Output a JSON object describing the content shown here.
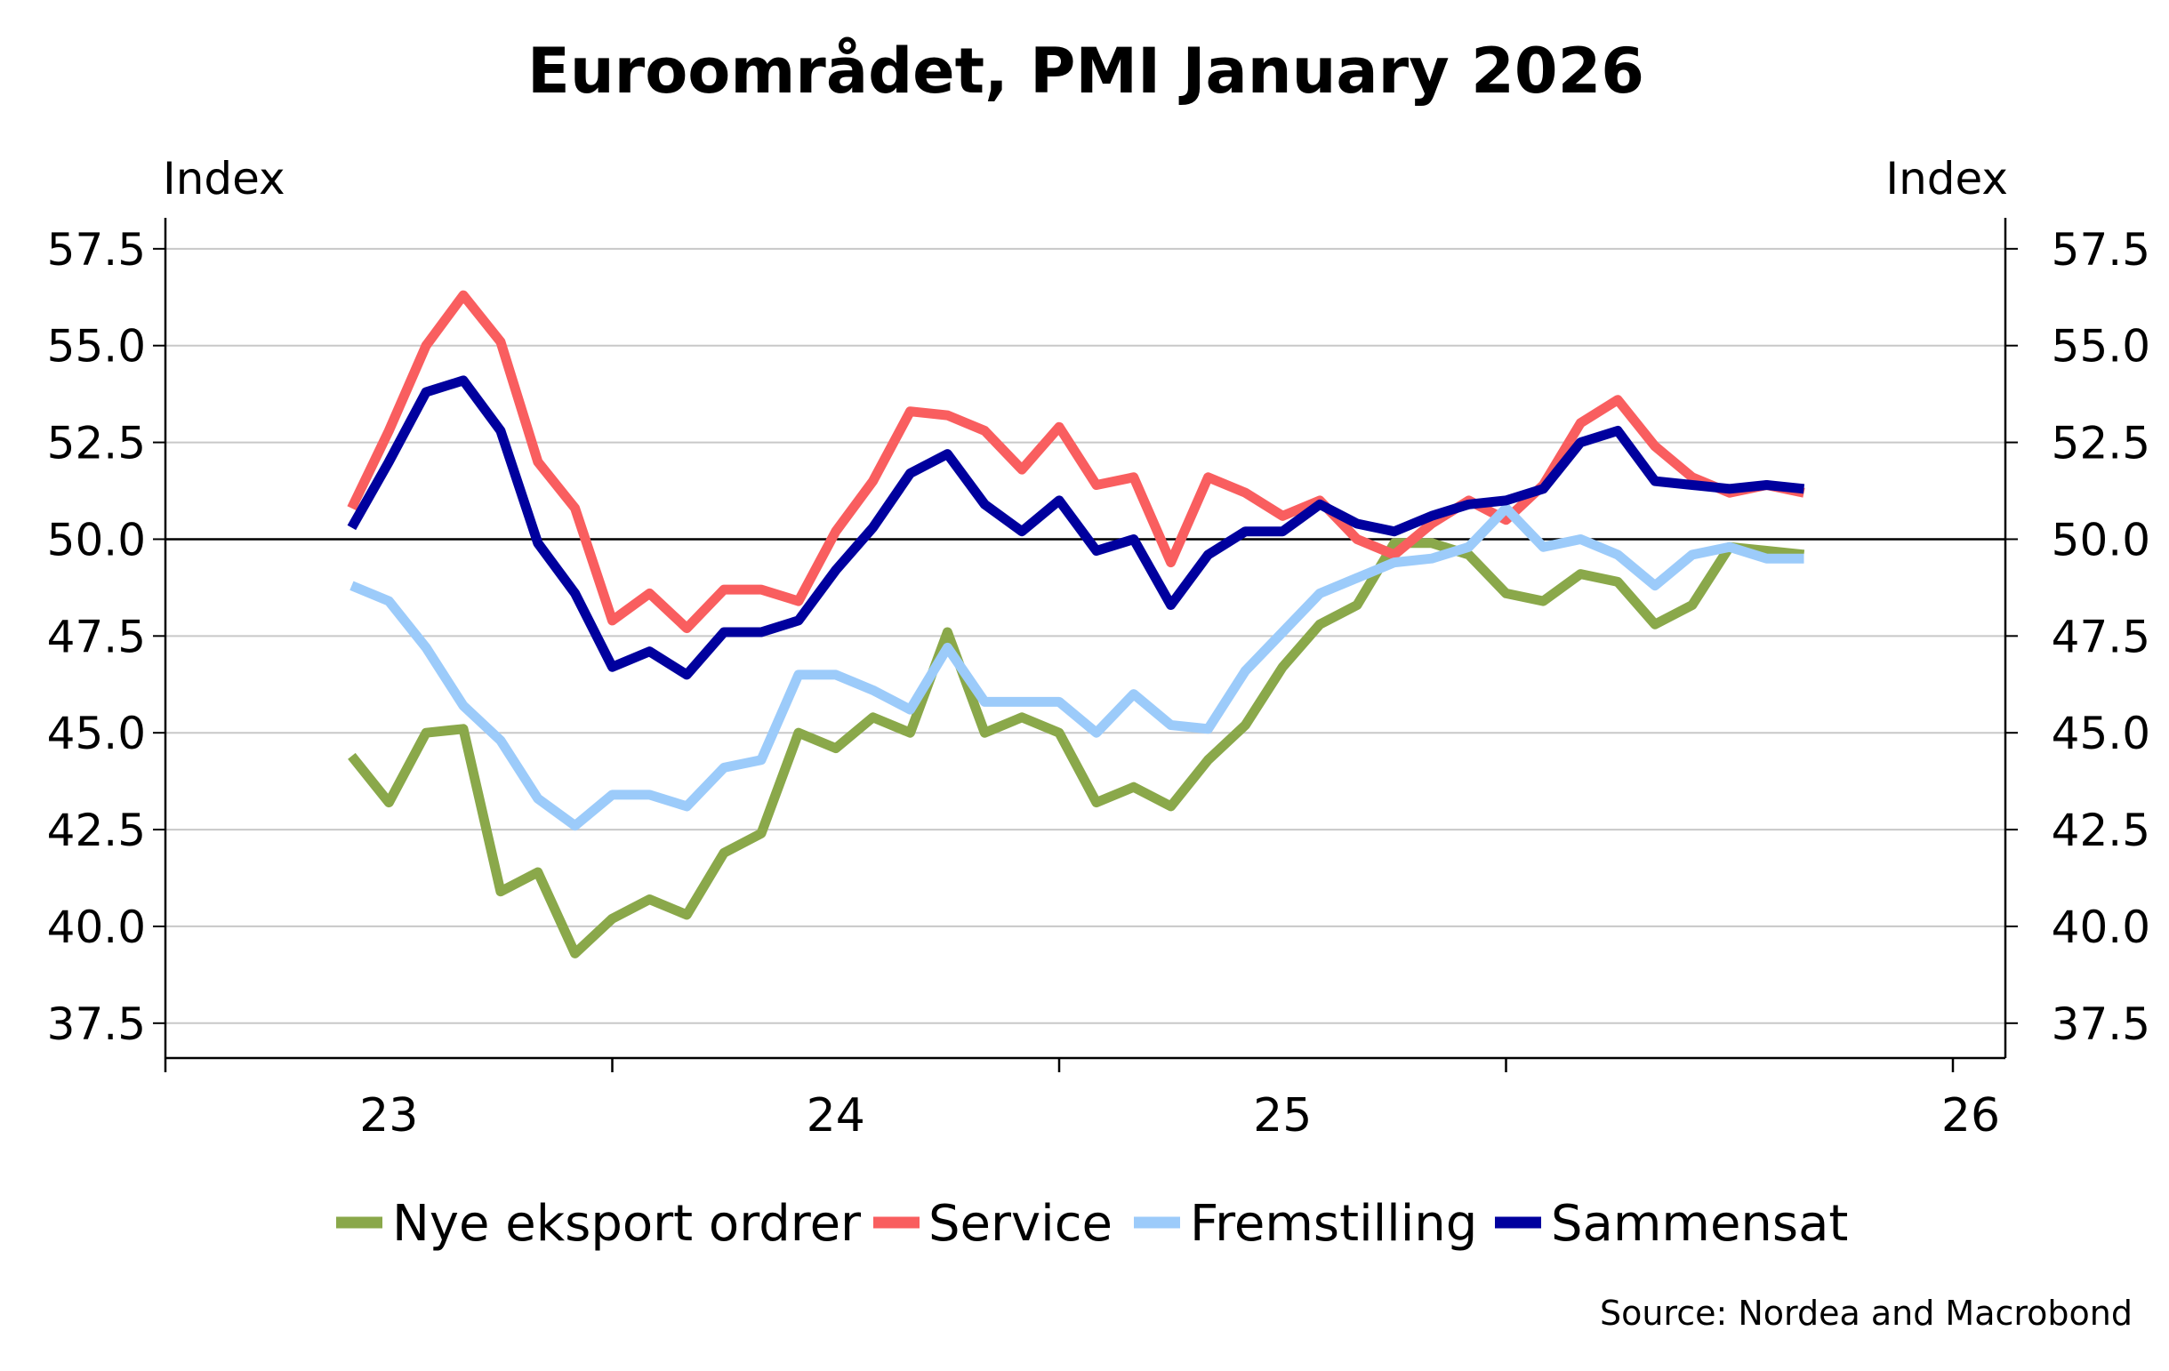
{
  "chart_data": {
    "type": "line",
    "title": "Euroområdet, PMI January 2026",
    "ylabel_left": "Index",
    "ylabel_right": "Index",
    "ylim": [
      36.6,
      58.3
    ],
    "yticks": [
      "57.5",
      "55.0",
      "52.5",
      "50.0",
      "47.5",
      "45.0",
      "42.5",
      "40.0",
      "37.5"
    ],
    "reference_line": 50.0,
    "x_tick_labels": [
      "23",
      "24",
      "25",
      "26"
    ],
    "x": [
      "2022-06",
      "2022-07",
      "2022-08",
      "2022-09",
      "2022-10",
      "2022-11",
      "2022-12",
      "2023-01",
      "2023-02",
      "2023-03",
      "2023-04",
      "2023-05",
      "2023-06",
      "2023-07",
      "2023-08",
      "2023-09",
      "2023-10",
      "2023-11",
      "2023-12",
      "2024-01",
      "2024-02",
      "2024-03",
      "2024-04",
      "2024-05",
      "2024-06",
      "2024-07",
      "2024-08",
      "2024-09",
      "2024-10",
      "2024-11",
      "2024-12",
      "2025-01",
      "2025-02",
      "2025-03",
      "2025-04",
      "2025-05",
      "2025-06",
      "2025-07",
      "2025-08",
      "2025-09"
    ],
    "series": [
      {
        "name": "Nye eksport ordrer",
        "color": "#8aa84a",
        "values": [
          44.4,
          43.2,
          45.0,
          45.1,
          40.9,
          41.4,
          39.3,
          40.2,
          40.7,
          40.3,
          41.9,
          42.4,
          45.0,
          44.6,
          45.4,
          45.0,
          47.6,
          45.0,
          45.4,
          45.0,
          43.2,
          43.6,
          43.1,
          44.3,
          45.2,
          46.7,
          47.8,
          48.3,
          49.9,
          49.9,
          49.6,
          48.6,
          48.4,
          49.1,
          48.9,
          47.8,
          48.3,
          49.8,
          49.7,
          49.6
        ]
      },
      {
        "name": "Service",
        "color": "#f95e5f",
        "values": [
          50.8,
          52.8,
          55.0,
          56.3,
          55.1,
          52.0,
          50.8,
          47.9,
          48.6,
          47.7,
          48.7,
          48.7,
          48.4,
          50.2,
          51.5,
          53.3,
          53.2,
          52.8,
          51.8,
          52.9,
          51.4,
          51.6,
          49.4,
          51.6,
          51.2,
          50.6,
          51.0,
          50.0,
          49.6,
          50.4,
          51.0,
          50.5,
          51.4,
          53.0,
          53.6,
          52.4,
          51.6,
          51.2,
          51.4,
          51.2
        ]
      },
      {
        "name": "Fremstilling",
        "color": "#9ccbfa",
        "values": [
          48.8,
          48.4,
          47.2,
          45.7,
          44.8,
          43.3,
          42.6,
          43.4,
          43.4,
          43.1,
          44.1,
          44.3,
          46.5,
          46.5,
          46.1,
          45.6,
          47.2,
          45.8,
          45.8,
          45.8,
          45.0,
          46.0,
          45.2,
          45.1,
          46.6,
          47.6,
          48.6,
          49.0,
          49.4,
          49.5,
          49.8,
          50.8,
          49.8,
          50.0,
          49.6,
          48.8,
          49.6,
          49.8,
          49.5,
          49.5
        ]
      },
      {
        "name": "Sammensat",
        "color": "#00009e",
        "values": [
          50.3,
          52.0,
          53.8,
          54.1,
          52.8,
          49.9,
          48.6,
          46.7,
          47.1,
          46.5,
          47.6,
          47.6,
          47.9,
          49.2,
          50.3,
          51.7,
          52.2,
          50.9,
          50.2,
          51.0,
          49.7,
          50.0,
          48.3,
          49.6,
          50.2,
          50.2,
          50.9,
          50.4,
          50.2,
          50.6,
          50.9,
          51.0,
          51.3,
          52.5,
          52.8,
          51.5,
          51.4,
          51.3,
          51.4,
          51.3
        ]
      }
    ],
    "legend": [
      "Nye eksport ordrer",
      "Service",
      "Fremstilling",
      "Sammensat"
    ],
    "source": "Source: Nordea and Macrobond"
  }
}
